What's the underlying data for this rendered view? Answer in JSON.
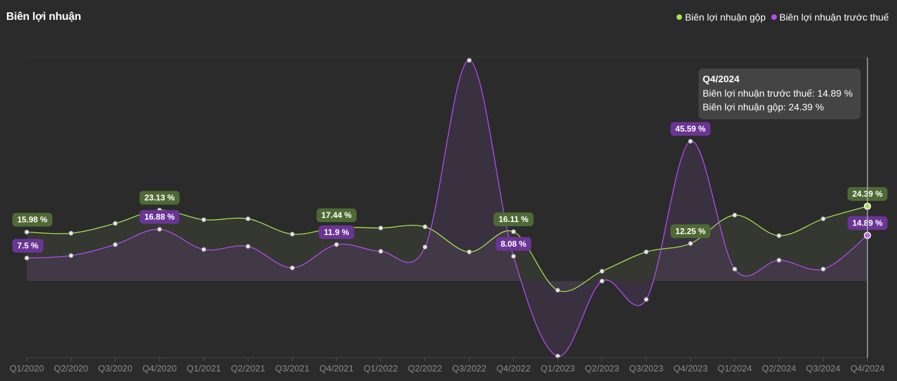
{
  "header": {
    "title": "Biên lợi nhuận"
  },
  "colors": {
    "gross": "#a6e34f",
    "pretax": "#b44cf0",
    "gross_label_bg": "#4e6a34",
    "pretax_label_bg": "#6a3594",
    "axis": "#8a8a8a",
    "bg": "#2b2b2b"
  },
  "tooltip": {
    "title": "Q4/2024",
    "line1": "Biên lợi nhuận trước thuế: 14.89 %",
    "line2": "Biên lợi nhuận gộp: 24.39 %"
  },
  "chart_data": {
    "type": "line",
    "title": "Biên lợi nhuận",
    "xlabel": "",
    "ylabel": "",
    "grid": false,
    "legend_position": "top-right",
    "categories": [
      "Q1/2020",
      "Q2/2020",
      "Q3/2020",
      "Q4/2020",
      "Q1/2021",
      "Q2/2021",
      "Q3/2021",
      "Q4/2021",
      "Q1/2022",
      "Q2/2022",
      "Q3/2022",
      "Q4/2022",
      "Q1/2023",
      "Q2/2023",
      "Q3/2023",
      "Q4/2023",
      "Q1/2024",
      "Q2/2024",
      "Q3/2024",
      "Q4/2024"
    ],
    "series": [
      {
        "name": "Biên lợi nhuận gộp",
        "color": "#a6e34f",
        "values": [
          15.98,
          15.6,
          18.8,
          23.13,
          20.0,
          20.3,
          15.3,
          17.44,
          17.3,
          17.7,
          9.5,
          16.11,
          -3.0,
          3.2,
          9.5,
          12.25,
          21.5,
          14.8,
          20.3,
          24.39
        ],
        "labels": [
          {
            "index": 0,
            "text": "15.98 %"
          },
          {
            "index": 3,
            "text": "23.13 %"
          },
          {
            "index": 7,
            "text": "17.44 %"
          },
          {
            "index": 11,
            "text": "16.11 %"
          },
          {
            "index": 15,
            "text": "12.25 %"
          },
          {
            "index": 19,
            "text": "24.39 %"
          }
        ]
      },
      {
        "name": "Biên lợi nhuận trước thuế",
        "color": "#b44cf0",
        "values": [
          7.5,
          8.3,
          11.9,
          16.88,
          10.3,
          11.3,
          4.3,
          11.9,
          9.7,
          11.1,
          72.0,
          8.08,
          -24.5,
          0.0,
          -6.0,
          45.59,
          3.9,
          6.8,
          3.9,
          14.89
        ],
        "labels": [
          {
            "index": 0,
            "text": "7.5 %"
          },
          {
            "index": 3,
            "text": "16.88 %"
          },
          {
            "index": 7,
            "text": "11.9 %"
          },
          {
            "index": 11,
            "text": "8.08 %"
          },
          {
            "index": 15,
            "text": "45.59 %"
          },
          {
            "index": 19,
            "text": "14.89 %"
          }
        ]
      }
    ],
    "ylim": [
      -25,
      72
    ],
    "highlight_index": 19
  }
}
